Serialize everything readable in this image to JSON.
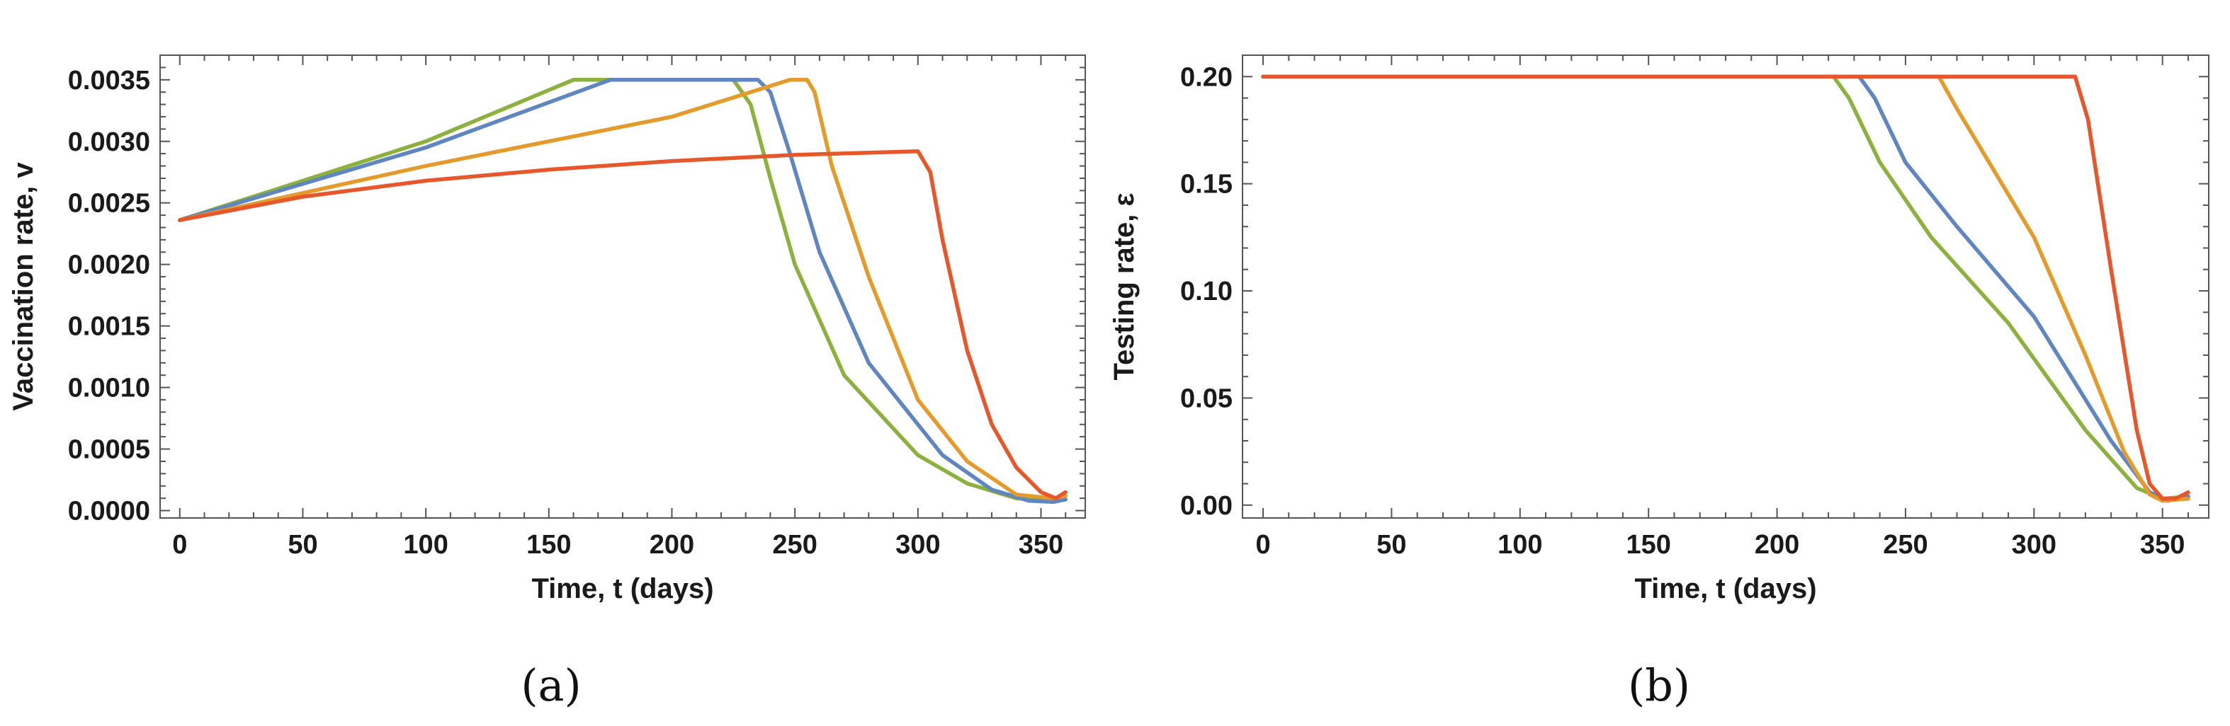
{
  "chart_data": [
    {
      "type": "line",
      "panel_label": "(a)",
      "xlabel": "Time, t (days)",
      "ylabel": "Vaccination rate, v",
      "xlim": [
        -8,
        368
      ],
      "ylim": [
        -6e-05,
        0.0037
      ],
      "x_ticks": [
        0,
        50,
        100,
        150,
        200,
        250,
        300,
        350
      ],
      "x_tick_labels": [
        "0",
        "50",
        "100",
        "150",
        "200",
        "250",
        "300",
        "350"
      ],
      "y_ticks": [
        0,
        0.0005,
        0.001,
        0.0015,
        0.002,
        0.0025,
        0.003,
        0.0035
      ],
      "y_tick_labels": [
        "0.0000",
        "0.0005",
        "0.0010",
        "0.0015",
        "0.0020",
        "0.0025",
        "0.0030",
        "0.0035"
      ],
      "series": [
        {
          "name": "green",
          "color": "#8db13e",
          "x": [
            0,
            100,
            160,
            225,
            232,
            240,
            250,
            270,
            300,
            320,
            340,
            355,
            360
          ],
          "y": [
            0.00236,
            0.003,
            0.0035,
            0.0035,
            0.0033,
            0.0027,
            0.002,
            0.0011,
            0.00045,
            0.00022,
            0.0001,
            8e-05,
            9e-05
          ]
        },
        {
          "name": "blue",
          "color": "#5f86c0",
          "x": [
            0,
            100,
            175,
            235,
            240,
            248,
            260,
            280,
            310,
            330,
            345,
            355,
            360
          ],
          "y": [
            0.00236,
            0.00295,
            0.0035,
            0.0035,
            0.0034,
            0.0029,
            0.0021,
            0.0012,
            0.00045,
            0.00017,
            8e-05,
            7e-05,
            9e-05
          ]
        },
        {
          "name": "orange",
          "color": "#e59b2b",
          "x": [
            0,
            100,
            200,
            248,
            255,
            258,
            265,
            280,
            300,
            320,
            340,
            355,
            360
          ],
          "y": [
            0.00236,
            0.0028,
            0.0032,
            0.0035,
            0.0035,
            0.0034,
            0.0028,
            0.0019,
            0.0009,
            0.0004,
            0.00013,
            0.0001,
            0.00012
          ]
        },
        {
          "name": "red",
          "color": "#e6582b",
          "x": [
            0,
            50,
            100,
            150,
            200,
            250,
            300,
            305,
            310,
            320,
            330,
            340,
            350,
            356,
            360
          ],
          "y": [
            0.00236,
            0.00255,
            0.00268,
            0.00277,
            0.00284,
            0.00289,
            0.00292,
            0.00275,
            0.0022,
            0.0013,
            0.0007,
            0.00035,
            0.00015,
            0.0001,
            0.00015
          ]
        }
      ]
    },
    {
      "type": "line",
      "panel_label": "(b)",
      "xlabel": "Time, t (days)",
      "ylabel": "Testing rate, ε",
      "xlim": [
        -8,
        368
      ],
      "ylim": [
        -0.006,
        0.21
      ],
      "x_ticks": [
        0,
        50,
        100,
        150,
        200,
        250,
        300,
        350
      ],
      "x_tick_labels": [
        "0",
        "50",
        "100",
        "150",
        "200",
        "250",
        "300",
        "350"
      ],
      "y_ticks": [
        0,
        0.05,
        0.1,
        0.15,
        0.2
      ],
      "y_tick_labels": [
        "0.00",
        "0.05",
        "0.10",
        "0.15",
        "0.20"
      ],
      "series": [
        {
          "name": "green",
          "color": "#8db13e",
          "x": [
            0,
            222,
            228,
            240,
            260,
            290,
            320,
            340,
            350,
            360
          ],
          "y": [
            0.2,
            0.2,
            0.19,
            0.16,
            0.125,
            0.085,
            0.035,
            0.008,
            0.003,
            0.004
          ]
        },
        {
          "name": "blue",
          "color": "#5f86c0",
          "x": [
            0,
            232,
            238,
            250,
            270,
            300,
            330,
            345,
            352,
            360
          ],
          "y": [
            0.2,
            0.2,
            0.19,
            0.16,
            0.13,
            0.088,
            0.03,
            0.006,
            0.002,
            0.004
          ]
        },
        {
          "name": "orange",
          "color": "#e59b2b",
          "x": [
            0,
            263,
            270,
            280,
            300,
            320,
            335,
            345,
            350,
            360
          ],
          "y": [
            0.2,
            0.2,
            0.185,
            0.165,
            0.125,
            0.07,
            0.025,
            0.005,
            0.002,
            0.003
          ]
        },
        {
          "name": "red",
          "color": "#e6582b",
          "x": [
            0,
            316,
            321,
            330,
            340,
            345,
            350,
            355,
            360
          ],
          "y": [
            0.2,
            0.2,
            0.18,
            0.11,
            0.035,
            0.01,
            0.003,
            0.003,
            0.006
          ]
        }
      ]
    }
  ]
}
